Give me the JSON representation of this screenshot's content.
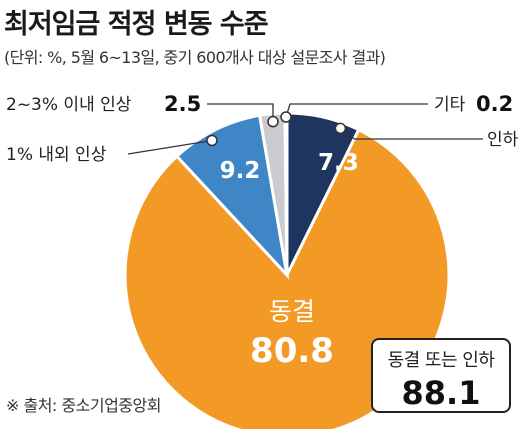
{
  "title": "최저임금 적정 변동 수준",
  "subtitle": "(단위: %, 5월 6~13일, 중기 600개사 대상 설문조사 결과)",
  "source": "※ 출처: 중소기업중앙회",
  "summary": {
    "label": "동결 또는 인하",
    "value": "88.1"
  },
  "chart_data": {
    "type": "pie",
    "unit": "%",
    "slices": [
      {
        "label": "인하",
        "value": 7.3,
        "color": "#1e3560",
        "display_value": "7.3"
      },
      {
        "label": "동결",
        "value": 80.8,
        "color": "#f39a26",
        "display_value": "80.8"
      },
      {
        "label": "1% 내외 인상",
        "value": 9.2,
        "color": "#3f86c6",
        "display_value": "9.2"
      },
      {
        "label": "2~3% 이내 인상",
        "value": 2.5,
        "color": "#c9cbce",
        "display_value": "2.5"
      },
      {
        "label": "기타",
        "value": 0.2,
        "color": "#7a7d82",
        "display_value": "0.2"
      }
    ]
  }
}
